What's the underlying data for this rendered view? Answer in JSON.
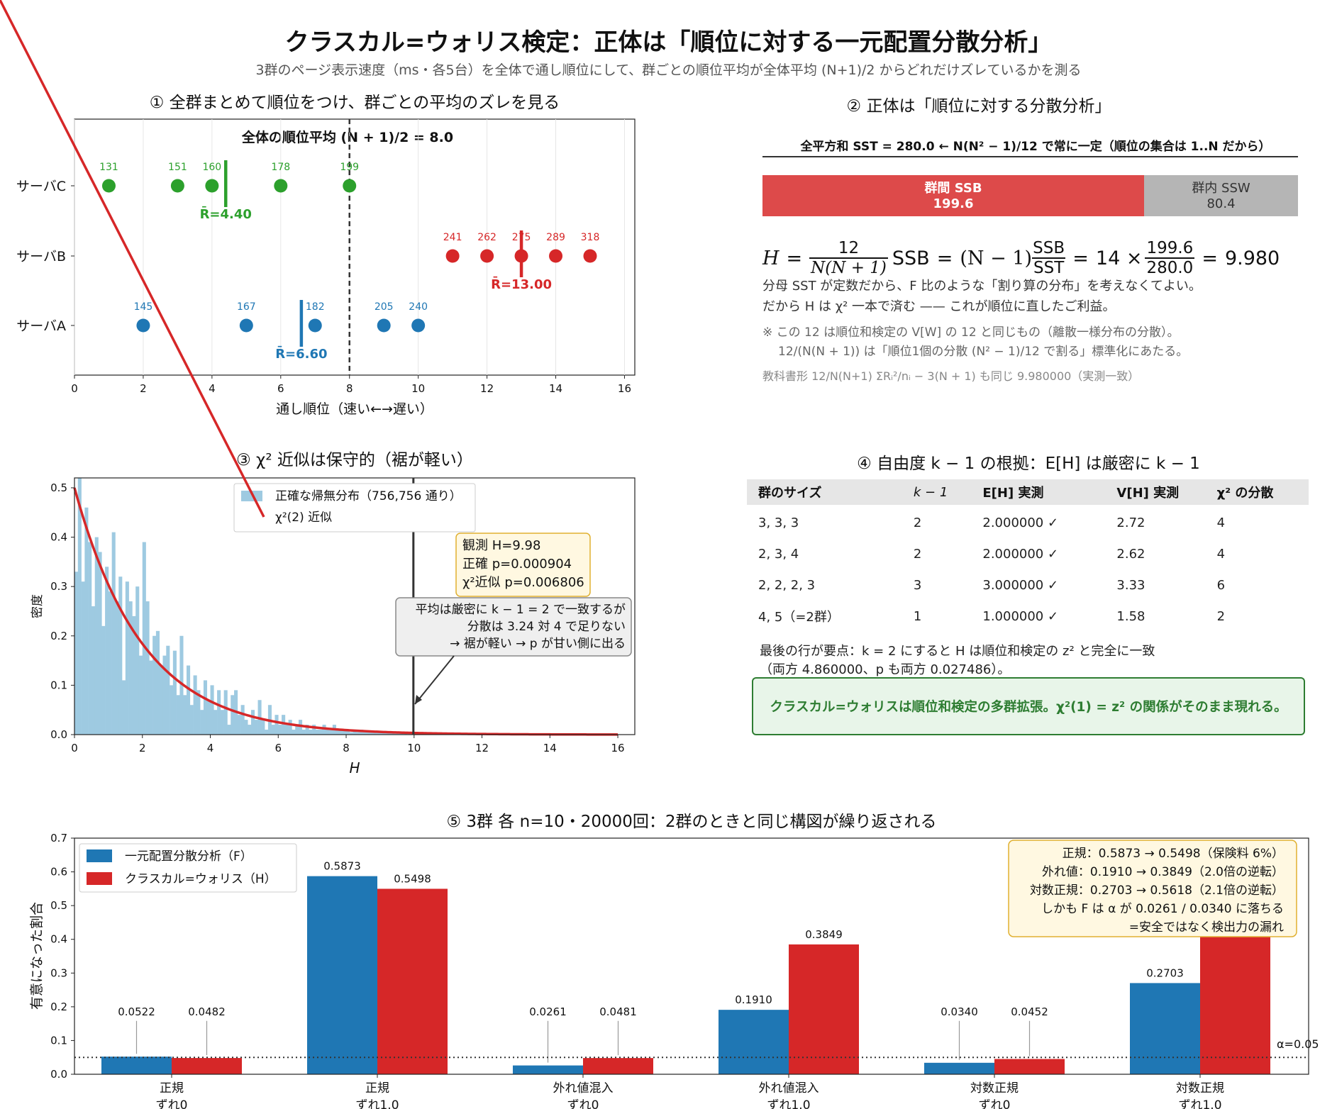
{
  "title": "クラスカル=ウォリス検定：正体は「順位に対する一元配置分散分析」",
  "subtitle": "3群のページ表示速度（ms・各5台）を全体で通し順位にして、群ごとの順位平均が全体平均 (N+1)/2 からどれだけズレているかを測る",
  "colors": {
    "A": "#1f77b4",
    "B": "#d62728",
    "C": "#2ca02c",
    "ssb": "#dd4a4a",
    "ssw": "#b5b5b5",
    "hist": "#9ecae1",
    "note_bg": "#fff8e1",
    "note_border": "#e0b030",
    "green_bg": "#e8f5e9",
    "green_border": "#2e7d32"
  },
  "panel1": {
    "title": "① 全群まとめて順位をつけ、群ごとの平均のズレを見る",
    "mean_label": "全体の順位平均 (N + 1)/2 = 8.0",
    "xlabel": "通し順位（速い←→遅い）",
    "xticks": [
      "0",
      "2",
      "4",
      "6",
      "8",
      "10",
      "12",
      "14",
      "16"
    ],
    "groups": [
      {
        "name": "サーバA",
        "key": "A",
        "ranks": [
          2,
          5,
          7,
          9,
          10
        ],
        "labels": [
          "145",
          "167",
          "182",
          "205",
          "240"
        ],
        "mean": 6.6,
        "mean_label": "R̄=6.60"
      },
      {
        "name": "サーバB",
        "key": "B",
        "ranks": [
          11,
          12,
          13,
          14,
          15
        ],
        "labels": [
          "241",
          "262",
          "275",
          "289",
          "318"
        ],
        "mean": 13.0,
        "mean_label": "R̄=13.00"
      },
      {
        "name": "サーバC",
        "key": "C",
        "ranks": [
          1,
          3,
          4,
          6,
          8
        ],
        "labels": [
          "131",
          "151",
          "160",
          "178",
          "199"
        ],
        "mean": 4.4,
        "mean_label": "R̄=4.40"
      }
    ]
  },
  "panel2": {
    "title": "② 正体は「順位に対する分散分析」",
    "sst_label": "全平方和 SST = 280.0 ← N(N² − 1)/12 で常に一定（順位の集合は 1..N だから）",
    "ssb_label": "群間 SSB",
    "ssb_value": "199.6",
    "ssw_label": "群内 SSW",
    "ssw_value": "80.4",
    "formula": {
      "h": "H",
      "eq": "=",
      "n12": "12",
      "dn": "N(N + 1)",
      "ssb": "SSB",
      "n1": "(N − 1)",
      "fn": "SSB",
      "fd": "SST",
      "mult": "14 ×",
      "vn": "199.6",
      "vd": "280.0",
      "result": "9.980"
    },
    "line1": "分母 SST が定数だから、F 比のような「割り算の分布」を考えなくてよい。",
    "line2": "だから H は χ² 一本で済む —— これが順位に直したご利益。",
    "note1": "※ この 12 は順位和検定の V[W] の 12 と同じもの（離散一様分布の分散）。",
    "note2": "12/(N(N + 1)) は「順位1個の分散 (N² − 1)/12 で割る」標準化にあたる。",
    "textbook": "教科書形 12/N(N+1) ΣRᵢ²/nᵢ − 3(N + 1) も同じ 9.980000（実測一致）"
  },
  "panel3": {
    "title": "③ χ² 近似は保守的（裾が軽い）",
    "legend_hist": "正確な帰無分布（756,756 通り）",
    "legend_line": "χ²(2) 近似",
    "ylabel": "密度",
    "xlabel": "H",
    "xticks": [
      "0",
      "2",
      "4",
      "6",
      "8",
      "10",
      "12",
      "14",
      "16"
    ],
    "yticks": [
      "0.0",
      "0.1",
      "0.2",
      "0.3",
      "0.4",
      "0.5"
    ],
    "observed": 9.98,
    "note_box": [
      "観測 H=9.98",
      "正確 p=0.000904",
      "χ²近似 p=0.006806"
    ],
    "annotation": [
      "平均は厳密に k − 1 = 2 で一致するが",
      "分散は 3.24 対 4 で足りない",
      "→ 裾が軽い → p が甘い側に出る"
    ]
  },
  "panel4": {
    "title": "④ 自由度 k − 1 の根拠：E[H] は厳密に k − 1",
    "headers": [
      "群のサイズ",
      "k − 1",
      "E[H] 実測",
      "V[H] 実測",
      "χ² の分散"
    ],
    "rows": [
      [
        "3, 3, 3",
        "2",
        "2.000000 ✓",
        "2.72",
        "4"
      ],
      [
        "2, 3, 4",
        "2",
        "2.000000 ✓",
        "2.62",
        "4"
      ],
      [
        "2, 2, 2, 3",
        "3",
        "3.000000 ✓",
        "3.33",
        "6"
      ],
      [
        "4, 5（=2群）",
        "1",
        "1.000000 ✓",
        "1.58",
        "2"
      ]
    ],
    "footnote1": "最後の行が要点：k = 2 にすると H は順位和検定の z² と完全に一致",
    "footnote2": "（両方 4.860000、p も両方 0.027486）。",
    "conclusion": "クラスカル=ウォリスは順位和検定の多群拡張。χ²(1) = z² の関係がそのまま現れる。"
  },
  "panel5": {
    "title": "⑤ 3群 各 n=10・20000回：2群のときと同じ構図が繰り返される",
    "ylabel": "有意になった割合",
    "legend": [
      "一元配置分散分析（F）",
      "クラスカル=ウォリス（H）"
    ],
    "alpha_label": "α=0.05",
    "yticks": [
      "0.0",
      "0.1",
      "0.2",
      "0.3",
      "0.4",
      "0.5",
      "0.6",
      "0.7"
    ],
    "note_box": [
      "正規：0.5873 → 0.5498（保険料 6%）",
      "外れ値：0.1910 → 0.3849（2.0倍の逆転）",
      "対数正規：0.2703 → 0.5618（2.1倍の逆転）",
      "しかも F は α が 0.0261 / 0.0340 に落ちる",
      "=安全ではなく検出力の漏れ"
    ]
  },
  "chart_data": [
    {
      "type": "scatter",
      "title": "① 全群まとめて順位をつけ、群ごとの平均のズレを見る",
      "xlabel": "通し順位（速い←→遅い）",
      "xlim": [
        0,
        16.3
      ],
      "series": [
        {
          "name": "サーバA",
          "x": [
            2,
            5,
            7,
            9,
            10
          ],
          "y": [
            "サーバA",
            "サーバA",
            "サーバA",
            "サーバA",
            "サーバA"
          ],
          "values_ms": [
            145,
            167,
            182,
            205,
            240
          ],
          "mean_rank": 6.6
        },
        {
          "name": "サーバB",
          "x": [
            11,
            12,
            13,
            14,
            15
          ],
          "y": [
            "サーバB",
            "サーバB",
            "サーバB",
            "サーバB",
            "サーバB"
          ],
          "values_ms": [
            241,
            262,
            275,
            289,
            318
          ],
          "mean_rank": 13.0
        },
        {
          "name": "サーバC",
          "x": [
            1,
            3,
            4,
            6,
            8
          ],
          "y": [
            "サーバC",
            "サーバC",
            "サーバC",
            "サーバC",
            "サーバC"
          ],
          "values_ms": [
            131,
            151,
            160,
            178,
            199
          ],
          "mean_rank": 4.4
        }
      ],
      "reference_line": 8.0
    },
    {
      "type": "bar",
      "title": "② 正体は「順位に対する分散分析」",
      "categories": [
        "群間 SSB",
        "群内 SSW"
      ],
      "values": [
        199.6,
        80.4
      ],
      "total": 280.0
    },
    {
      "type": "area",
      "title": "③ χ² 近似は保守的（裾が軽い）",
      "xlabel": "H",
      "ylabel": "密度",
      "xlim": [
        0,
        16.5
      ],
      "ylim": [
        0,
        0.52
      ],
      "series": [
        {
          "name": "正確な帰無分布（756,756 通り）",
          "type": "histogram",
          "x": [
            0.05,
            0.15,
            0.25,
            0.35,
            0.45,
            0.55,
            0.65,
            0.75,
            0.85,
            0.95,
            1.05,
            1.15,
            1.25,
            1.35,
            1.45,
            1.55,
            1.65,
            1.75,
            1.85,
            1.95,
            2.05,
            2.15,
            2.25,
            2.35,
            2.45,
            2.55,
            2.65,
            2.75,
            2.85,
            2.95,
            3.05,
            3.15,
            3.25,
            3.35,
            3.45,
            3.55,
            3.65,
            3.75,
            3.85,
            3.95,
            4.05,
            4.15,
            4.25,
            4.35,
            4.45,
            4.55,
            4.65,
            4.75,
            4.85,
            4.95,
            5.05,
            5.15,
            5.25,
            5.35,
            5.45,
            5.55,
            5.65,
            5.75,
            5.85,
            5.95,
            6.05,
            6.15,
            6.25,
            6.35,
            6.45,
            6.55,
            6.65,
            6.75,
            6.85,
            6.95,
            7.05,
            7.15,
            7.25,
            7.35,
            7.45,
            7.55,
            7.65,
            7.75,
            7.85,
            7.95,
            8.05,
            8.15,
            8.25,
            8.35,
            8.45,
            8.55,
            8.65,
            8.75,
            8.85,
            8.95,
            9.05,
            9.15,
            9.25,
            9.35,
            9.45,
            9.55,
            9.65,
            9.75,
            9.85,
            9.95
          ],
          "y": [
            0.33,
            0.52,
            0.31,
            0.46,
            0.39,
            0.26,
            0.4,
            0.37,
            0.22,
            0.34,
            0.29,
            0.41,
            0.27,
            0.32,
            0.11,
            0.31,
            0.27,
            0.24,
            0.3,
            0.16,
            0.39,
            0.27,
            0.15,
            0.2,
            0.21,
            0.14,
            0.16,
            0.18,
            0.1,
            0.17,
            0.08,
            0.2,
            0.08,
            0.14,
            0.06,
            0.12,
            0.09,
            0.05,
            0.11,
            0.07,
            0.1,
            0.05,
            0.09,
            0.05,
            0.09,
            0.02,
            0.08,
            0.09,
            0.04,
            0.06,
            0.03,
            0.02,
            0.05,
            0.03,
            0.07,
            0.03,
            0.01,
            0.06,
            0.02,
            0.04,
            0.02,
            0.04,
            0.02,
            0.03,
            0.01,
            0.02,
            0.03,
            0.01,
            0.02,
            0.01,
            0.02,
            0.01,
            0.01,
            0.02,
            0.01,
            0.01,
            0.02,
            0.01,
            0.01,
            0.01,
            0.01,
            0.005,
            0.01,
            0.005,
            0.01,
            0.005,
            0.005,
            0.005,
            0.005,
            0.004,
            0.004,
            0.003,
            0.003,
            0.003,
            0.002,
            0.002,
            0.002,
            0.002,
            0.001,
            0.001
          ]
        },
        {
          "name": "χ²(2) 近似",
          "type": "line",
          "formula": "0.5*exp(-H/2)",
          "x_range": [
            0,
            16
          ]
        }
      ],
      "observed_H": 9.98,
      "p_exact": 0.000904,
      "p_chi2": 0.006806
    },
    {
      "type": "table",
      "title": "④ 自由度 k − 1 の根拠：E[H] は厳密に k − 1",
      "columns": [
        "群のサイズ",
        "k − 1",
        "E[H] 実測",
        "V[H] 実測",
        "χ² の分散"
      ],
      "rows": [
        [
          "3, 3, 3",
          2,
          2.0,
          2.72,
          4
        ],
        [
          "2, 3, 4",
          2,
          2.0,
          2.62,
          4
        ],
        [
          "2, 2, 2, 3",
          3,
          3.0,
          3.33,
          6
        ],
        [
          "4, 5（=2群）",
          1,
          1.0,
          1.58,
          2
        ]
      ]
    },
    {
      "type": "bar",
      "title": "⑤ 3群 各 n=10・20000回：2群のときと同じ構図が繰り返される",
      "ylabel": "有意になった割合",
      "ylim": [
        0,
        0.7
      ],
      "categories": [
        "正規\nずれ0",
        "正規\nずれ1.0",
        "外れ値混入\nずれ0",
        "外れ値混入\nずれ1.0",
        "対数正規\nずれ0",
        "対数正規\nずれ1.0"
      ],
      "series": [
        {
          "name": "一元配置分散分析（F）",
          "values": [
            0.0522,
            0.5873,
            0.0261,
            0.191,
            0.034,
            0.2703
          ]
        },
        {
          "name": "クラスカル=ウォリス（H）",
          "values": [
            0.0482,
            0.5498,
            0.0481,
            0.3849,
            0.0452,
            0.5618
          ]
        }
      ],
      "labels": {
        "F": [
          "0.0522",
          "0.5873",
          "0.0261",
          "0.1910",
          "0.0340",
          "0.2703"
        ],
        "H": [
          "0.0482",
          "0.5498",
          "0.0481",
          "0.3849",
          "0.0452",
          ""
        ]
      },
      "reference_line": 0.05
    }
  ]
}
